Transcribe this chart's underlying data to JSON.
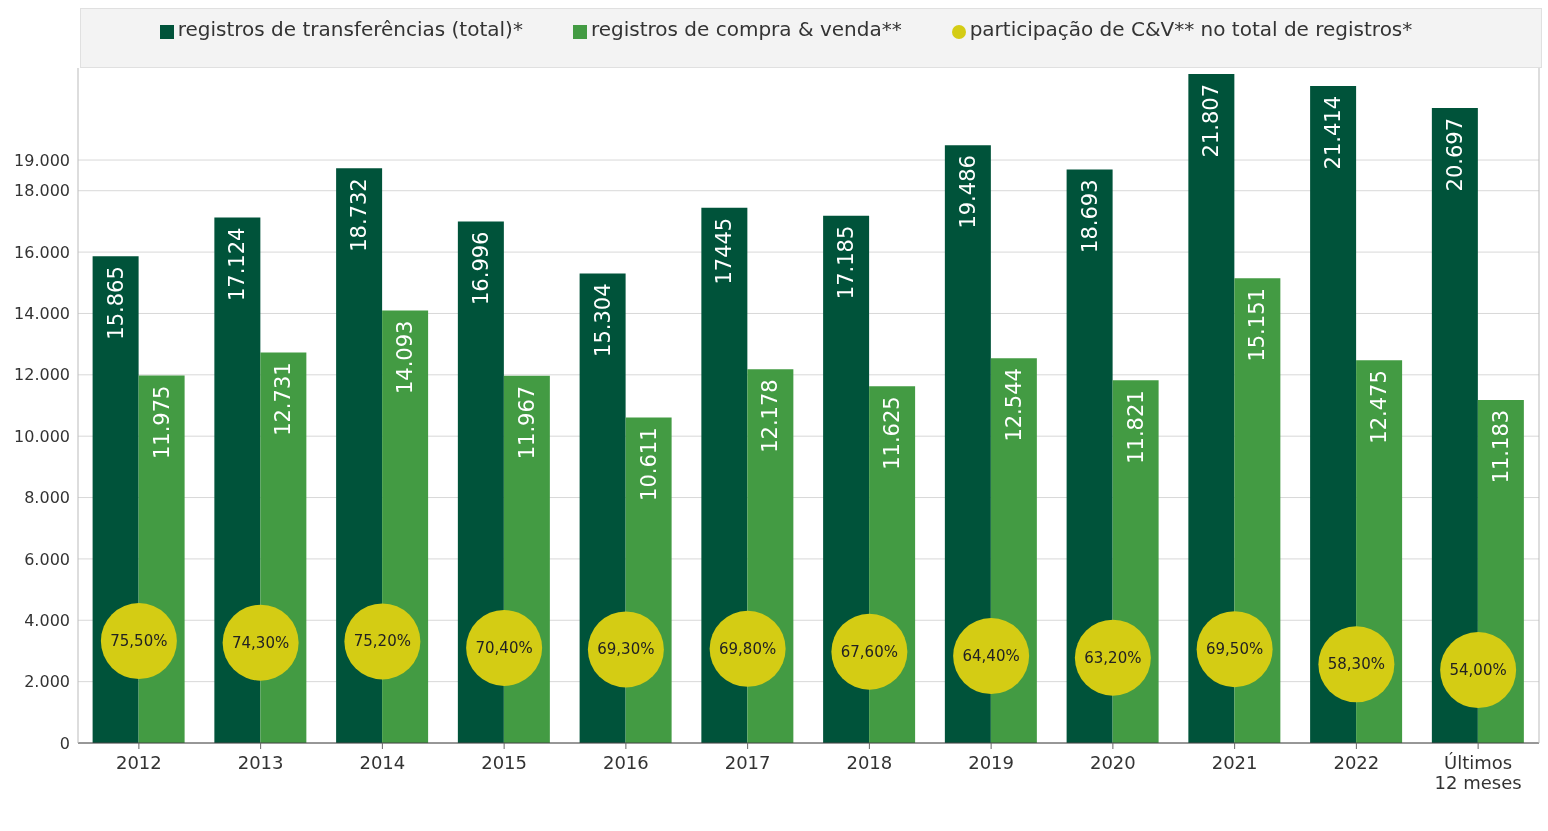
{
  "chart_data": {
    "type": "bar",
    "categories": [
      "2012",
      "2013",
      "2014",
      "2015",
      "2016",
      "2017",
      "2018",
      "2019",
      "2020",
      "2021",
      "2022",
      "Últimos 12 meses"
    ],
    "series": [
      {
        "name": "registros de transferências (total)*",
        "color": "#00533a",
        "values": [
          15865,
          17124,
          18732,
          16996,
          15304,
          17445,
          17185,
          19486,
          18693,
          21807,
          21414,
          20697
        ],
        "value_labels": [
          "15.865",
          "17.124",
          "18.732",
          "16.996",
          "15.304",
          "17445",
          "17.185",
          "19.486",
          "18.693",
          "21.807",
          "21.414",
          "20.697"
        ]
      },
      {
        "name": "registros de compra & venda**",
        "color": "#439b43",
        "values": [
          11975,
          12731,
          14093,
          11967,
          10611,
          12178,
          11625,
          12544,
          11821,
          15151,
          12475,
          11183
        ],
        "value_labels": [
          "11.975",
          "12.731",
          "14.093",
          "11.967",
          "10.611",
          "12.178",
          "11.625",
          "12.544",
          "11.821",
          "15.151",
          "12.475",
          "11.183"
        ]
      },
      {
        "name": "participação de C&V** no total de registros*",
        "type": "scatter",
        "axis": "y2",
        "color": "#d4cc14",
        "values": [
          75.5,
          74.3,
          75.2,
          70.4,
          69.3,
          69.8,
          67.6,
          64.4,
          63.2,
          69.5,
          58.3,
          54.0
        ],
        "value_labels": [
          "75,50%",
          "74,30%",
          "75,20%",
          "70,40%",
          "69,30%",
          "69,80%",
          "67,60%",
          "64,40%",
          "63,20%",
          "69,50%",
          "58,30%",
          "54,00%"
        ]
      }
    ],
    "ylim": [
      0,
      22000
    ],
    "yticks": [
      {
        "value": 0,
        "label": "0"
      },
      {
        "value": 2000,
        "label": "2.000"
      },
      {
        "value": 4000,
        "label": "4.000"
      },
      {
        "value": 6000,
        "label": "6.000"
      },
      {
        "value": 8000,
        "label": "8.000"
      },
      {
        "value": 10000,
        "label": "10.000"
      },
      {
        "value": 12000,
        "label": "12.000"
      },
      {
        "value": 14000,
        "label": "14.000"
      },
      {
        "value": 16000,
        "label": "16.000"
      },
      {
        "value": 18000,
        "label": "18.000"
      },
      {
        "value": 19000,
        "label": "19.000"
      }
    ],
    "y2lim": [
      0,
      500
    ],
    "grid": "y",
    "legend": "top",
    "tick_labels": "xy"
  }
}
